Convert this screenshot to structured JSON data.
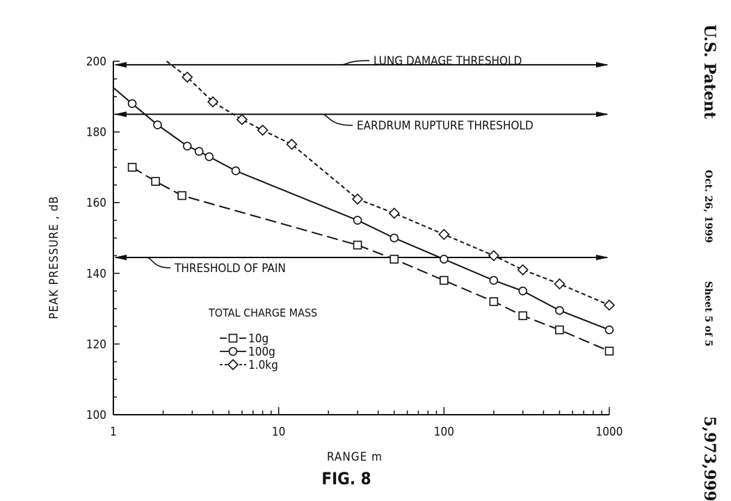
{
  "chart_data": {
    "type": "line",
    "title": "FIG. 8",
    "xlabel": "RANGE m",
    "ylabel": "PEAK PRESSURE , dB",
    "xscale": "log",
    "xlim": [
      1,
      1000
    ],
    "ylim": [
      100,
      200
    ],
    "xticks": [
      "1",
      "10",
      "100",
      "1000"
    ],
    "yticks": [
      "100",
      "120",
      "140",
      "160",
      "180",
      "200"
    ],
    "grid": false,
    "legend": {
      "title": "TOTAL CHARGE MASS",
      "position": "lower-left",
      "entries": [
        "10g",
        "100g",
        "1.0kg"
      ]
    },
    "series": [
      {
        "name": "10g",
        "marker": "square",
        "line_style": "long-dash",
        "x": [
          1.3,
          1.8,
          2.6,
          30,
          50,
          100,
          200,
          300,
          500,
          1000
        ],
        "y": [
          170,
          166,
          162,
          148,
          144,
          138,
          132,
          128,
          124,
          118
        ]
      },
      {
        "name": "100g",
        "marker": "circle",
        "line_style": "solid",
        "line_extends_to_x": 1,
        "line_extends_to_y": 192.5,
        "x": [
          1.3,
          1.85,
          2.8,
          3.3,
          3.8,
          5.5,
          30,
          50,
          100,
          200,
          300,
          500,
          1000
        ],
        "y": [
          188,
          182,
          176,
          174.5,
          173,
          169,
          155,
          150,
          144,
          138,
          135,
          129.5,
          124
        ]
      },
      {
        "name": "1.0kg",
        "marker": "diamond",
        "line_style": "short-dash",
        "line_extends_to_x": 2.1,
        "line_extends_to_y": 200,
        "x": [
          2.8,
          4,
          6,
          8,
          12,
          30,
          50,
          100,
          200,
          300,
          500,
          1000
        ],
        "y": [
          195.5,
          188.5,
          183.5,
          180.5,
          176.5,
          161,
          157,
          151,
          145,
          141,
          137,
          131
        ]
      }
    ],
    "thresholds": [
      {
        "label": "LUNG DAMAGE THRESHOLD",
        "y": 199
      },
      {
        "label": "EARDRUM RUPTURE THRESHOLD",
        "y": 185
      },
      {
        "label": "THRESHOLD OF PAIN",
        "y": 144.5
      }
    ]
  },
  "header": {
    "patent_label": "U.S. Patent",
    "date": "Oct. 26, 1999",
    "sheet": "Sheet 5 of 5",
    "patent_number": "5,973,999"
  }
}
